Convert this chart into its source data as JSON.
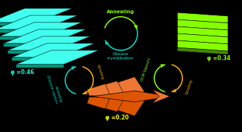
{
  "background_color": "#000000",
  "cyan_color": "#40FFEE",
  "cyan_dark": "#009980",
  "green_color": "#88FF00",
  "green_dark": "#448800",
  "orange_color": "#DD5500",
  "orange_light": "#EE7733",
  "orange_dark": "#993300",
  "arrow_cyan": "#00DDCC",
  "arrow_orange": "#FFAA00",
  "arrow_green": "#88FF00",
  "text_cyan": "#00FFDD",
  "text_green": "#88FF00",
  "text_orange": "#FFFF00",
  "phi_left": "φ =0.46",
  "phi_center": "φ =0.20",
  "phi_right": "φ =0.34",
  "label_top_top": "Annealing",
  "label_top_bottom": "Dioxane\ncrystallization",
  "label_left_text": "Annealing\n/Dioxane vapours",
  "label_left_arrow": "Grinding",
  "label_right_top": "DCM Vapours",
  "label_right_bottom": "Grinding"
}
